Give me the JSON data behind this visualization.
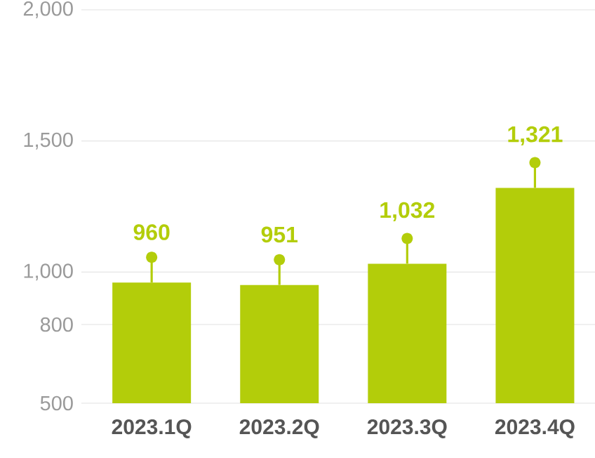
{
  "chart_data": {
    "type": "bar",
    "categories": [
      "2023.1Q",
      "2023.2Q",
      "2023.3Q",
      "2023.4Q"
    ],
    "values": [
      960,
      951,
      1032,
      1321
    ],
    "color": "#b3cd0a",
    "value_labels": [
      "960",
      "951",
      "1,032",
      "1,321"
    ],
    "ylim": [
      500,
      2000
    ],
    "yticks": [
      500,
      800,
      {
        "value": 1000,
        "label": "1,000"
      },
      {
        "value": 1500,
        "label": "1,500"
      },
      {
        "value": 2000,
        "label": "2,000"
      }
    ],
    "grid": "y"
  }
}
